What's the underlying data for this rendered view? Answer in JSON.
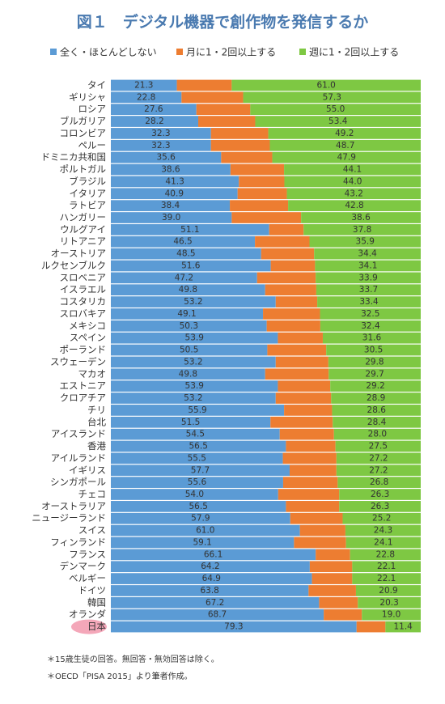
{
  "chart_data": {
    "type": "stacked-barh",
    "title": "図１　デジタル機器で創作物を発信するか",
    "categories": [
      "タイ",
      "ギリシャ",
      "ロシア",
      "ブルガリア",
      "コロンビア",
      "ペルー",
      "ドミニカ共和国",
      "ポルトガル",
      "ブラジル",
      "イタリア",
      "ラトビア",
      "ハンガリー",
      "ウルグアイ",
      "リトアニア",
      "オーストリア",
      "ルクセンブルク",
      "スロベニア",
      "イスラエル",
      "コスタリカ",
      "スロバキア",
      "メキシコ",
      "スペイン",
      "ポーランド",
      "スウェーデン",
      "マカオ",
      "エストニア",
      "クロアチア",
      "チリ",
      "台北",
      "アイスランド",
      "香港",
      "アイルランド",
      "イギリス",
      "シンガポール",
      "チェコ",
      "オーストラリア",
      "ニュージーランド",
      "スイス",
      "フィンランド",
      "フランス",
      "デンマーク",
      "ベルギー",
      "ドイツ",
      "韓国",
      "オランダ",
      "日本"
    ],
    "series": [
      {
        "name": "全く・ほとんどしない",
        "color": "#5b9bd5",
        "values": [
          21.3,
          22.8,
          27.6,
          28.2,
          32.3,
          32.3,
          35.6,
          38.6,
          41.3,
          40.9,
          38.4,
          39.0,
          51.1,
          46.5,
          48.5,
          51.6,
          47.2,
          49.8,
          53.2,
          49.1,
          50.3,
          53.9,
          50.5,
          53.2,
          49.8,
          53.9,
          53.2,
          55.9,
          51.5,
          54.5,
          56.5,
          55.5,
          57.7,
          55.6,
          54.0,
          56.5,
          57.9,
          61.0,
          59.1,
          66.1,
          64.2,
          64.9,
          63.8,
          67.2,
          68.7,
          79.3
        ],
        "value_labels": [
          "21.3",
          "22.8",
          "27.6",
          "28.2",
          "32.3",
          "32.3",
          "35.6",
          "38.6",
          "41.3",
          "40.9",
          "38.4",
          "39.0",
          "51.1",
          "46.5",
          "48.5",
          "51.6",
          "47.2",
          "49.8",
          "53.2",
          "49.1",
          "50.3",
          "53.9",
          "50.5",
          "53.2",
          "49.8",
          "53.9",
          "53.2",
          "55.9",
          "51.5",
          "54.5",
          "56.5",
          "55.5",
          "57.7",
          "55.6",
          "54.0",
          "56.5",
          "57.9",
          "61.0",
          "59.1",
          "66.1",
          "64.2",
          "64.9",
          "63.8",
          "67.2",
          "68.7",
          "79.3"
        ]
      },
      {
        "name": "月に1・2回以上する",
        "color": "#ed7d31",
        "values": [
          17.7,
          19.9,
          17.4,
          18.4,
          18.5,
          19.0,
          16.5,
          17.3,
          14.7,
          15.9,
          18.8,
          22.4,
          11.1,
          17.6,
          17.1,
          14.3,
          18.9,
          16.5,
          13.4,
          18.4,
          17.3,
          14.5,
          19.0,
          17.0,
          20.5,
          16.9,
          17.9,
          15.5,
          20.1,
          17.5,
          16.0,
          17.3,
          15.1,
          17.6,
          19.7,
          17.2,
          16.9,
          14.7,
          16.8,
          11.1,
          13.7,
          13.0,
          15.3,
          12.5,
          12.3,
          9.3
        ]
      },
      {
        "name": "週に1・2回以上する",
        "color": "#7ec843",
        "values": [
          61.0,
          57.3,
          55.0,
          53.4,
          49.2,
          48.7,
          47.9,
          44.1,
          44.0,
          43.2,
          42.8,
          38.6,
          37.8,
          35.9,
          34.4,
          34.1,
          33.9,
          33.7,
          33.4,
          32.5,
          32.4,
          31.6,
          30.5,
          29.8,
          29.7,
          29.2,
          28.9,
          28.6,
          28.4,
          28.0,
          27.5,
          27.2,
          27.2,
          26.8,
          26.3,
          26.3,
          25.2,
          24.3,
          24.1,
          22.8,
          22.1,
          22.1,
          20.9,
          20.3,
          19.0,
          11.4
        ],
        "value_labels": [
          "61.0",
          "57.3",
          "55.0",
          "53.4",
          "49.2",
          "48.7",
          "47.9",
          "44.1",
          "44.0",
          "43.2",
          "42.8",
          "38.6",
          "37.8",
          "35.9",
          "34.4",
          "34.1",
          "33.9",
          "33.7",
          "33.4",
          "32.5",
          "32.4",
          "31.6",
          "30.5",
          "29.8",
          "29.7",
          "29.2",
          "28.9",
          "28.6",
          "28.4",
          "28.0",
          "27.5",
          "27.2",
          "27.2",
          "26.8",
          "26.3",
          "26.3",
          "25.2",
          "24.3",
          "24.1",
          "22.8",
          "22.1",
          "22.1",
          "20.9",
          "20.3",
          "19.0",
          "11.4"
        ]
      }
    ],
    "xlim": [
      0,
      100
    ],
    "highlighted_category_index": 45,
    "notes": [
      "＊15歳生徒の回答。無回答・無効回答は除く。",
      "＊OECD「PISA 2015」より筆者作成。"
    ]
  }
}
